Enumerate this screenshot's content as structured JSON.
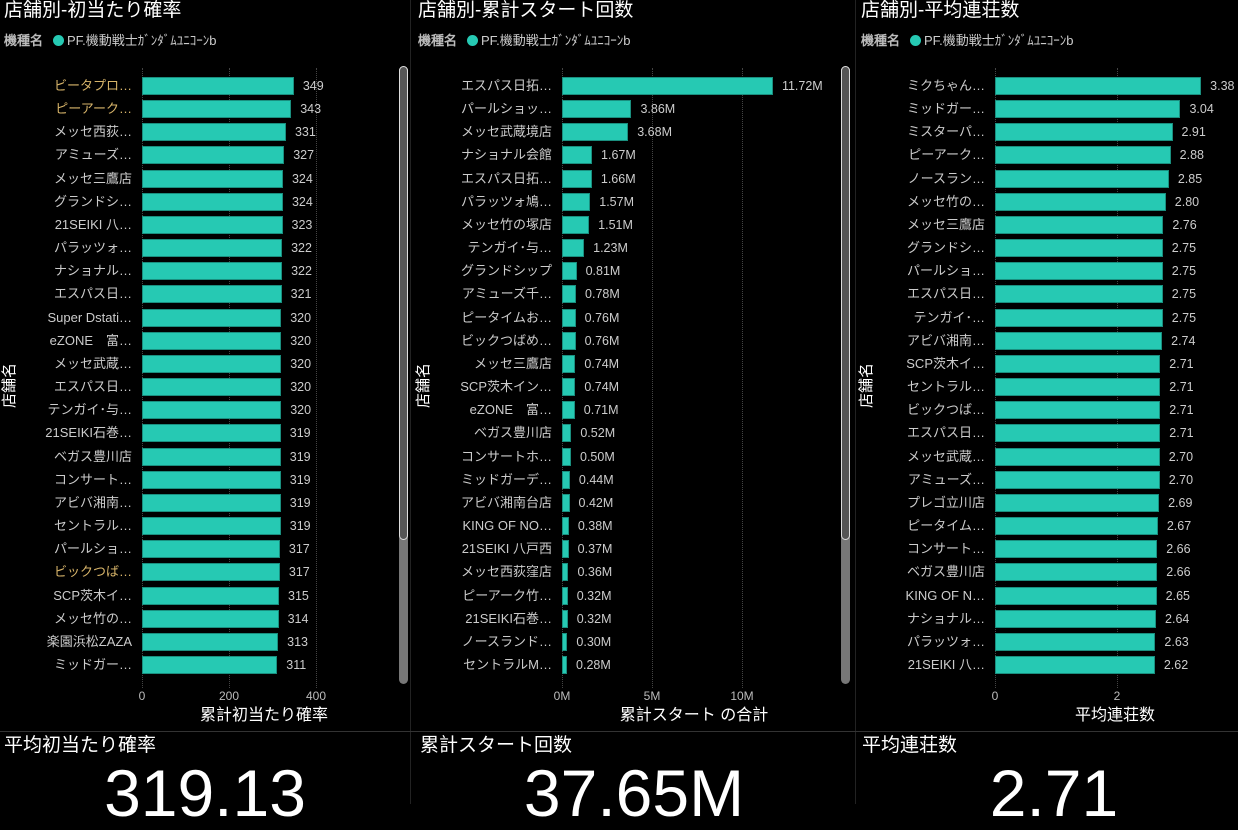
{
  "legend": {
    "label": "機種名",
    "series": "PF.機動戦士ｶﾞﾝﾀﾞﾑﾕﾆｺｰﾝb",
    "color": "#26c9b3"
  },
  "y_axis_title": "店舗名",
  "chart_data": [
    {
      "type": "bar",
      "title": "店舗別-初当たり確率",
      "xlabel": "累計初当たり確率",
      "ylabel": "店舗名",
      "xlim": [
        0,
        400
      ],
      "ticks": [
        "0",
        "200",
        "400"
      ],
      "tick_values": [
        0,
        200,
        400
      ],
      "categories": [
        "ビータプロ…",
        "ピーアーク…",
        "メッセ西荻…",
        "アミューズ…",
        "メッセ三鷹店",
        "グランドシ…",
        "21SEIKI 八…",
        "パラッツォ…",
        "ナショナル…",
        "エスパス日…",
        "Super Dstati…",
        "eZONE　富…",
        "メッセ武蔵…",
        "エスパス日…",
        "テンガイ･与…",
        "21SEIKI石巻…",
        "ベガス豊川店",
        "コンサート…",
        "アビバ湘南…",
        "セントラル…",
        "パールショ…",
        "ビックつば…",
        "SCP茨木イ…",
        "メッセ竹の…",
        "楽園浜松ZAZA",
        "ミッドガー…"
      ],
      "highlighted": [
        0,
        1,
        21
      ],
      "values": [
        349,
        343,
        331,
        327,
        324,
        324,
        323,
        322,
        322,
        321,
        320,
        320,
        320,
        320,
        320,
        319,
        319,
        319,
        319,
        319,
        317,
        317,
        315,
        314,
        313,
        311
      ],
      "labels": [
        "349",
        "343",
        "331",
        "327",
        "324",
        "324",
        "323",
        "322",
        "322",
        "321",
        "320",
        "320",
        "320",
        "320",
        "320",
        "319",
        "319",
        "319",
        "319",
        "319",
        "317",
        "317",
        "315",
        "314",
        "313",
        "311"
      ]
    },
    {
      "type": "bar",
      "title": "店舗別-累計スタート回数",
      "xlabel": "累計スタート の合計",
      "ylabel": "店舗名",
      "xlim": [
        0,
        13
      ],
      "ticks": [
        "0M",
        "5M",
        "10M"
      ],
      "tick_values": [
        0,
        5,
        10
      ],
      "categories": [
        "エスパス日拓…",
        "パールショッ…",
        "メッセ武蔵境店",
        "ナショナル会館",
        "エスパス日拓…",
        "パラッツォ鳩…",
        "メッセ竹の塚店",
        "テンガイ･与…",
        "グランドシップ",
        "アミューズ千…",
        "ピータイムお…",
        "ビックつばめ…",
        "メッセ三鷹店",
        "SCP茨木イン…",
        "eZONE　富…",
        "ベガス豊川店",
        "コンサートホ…",
        "ミッドガーデ…",
        "アビバ湘南台店",
        "KING OF NO…",
        "21SEIKI 八戸西",
        "メッセ西荻窪店",
        "ピーアーク竹…",
        "21SEIKI石巻…",
        "ノースランド…",
        "セントラルM…"
      ],
      "values": [
        11.72,
        3.86,
        3.68,
        1.67,
        1.66,
        1.57,
        1.51,
        1.23,
        0.81,
        0.78,
        0.76,
        0.76,
        0.74,
        0.74,
        0.71,
        0.52,
        0.5,
        0.44,
        0.42,
        0.38,
        0.37,
        0.36,
        0.32,
        0.32,
        0.3,
        0.28
      ],
      "labels": [
        "11.72M",
        "3.86M",
        "3.68M",
        "1.67M",
        "1.66M",
        "1.57M",
        "1.51M",
        "1.23M",
        "0.81M",
        "0.78M",
        "0.76M",
        "0.76M",
        "0.74M",
        "0.74M",
        "0.71M",
        "0.52M",
        "0.50M",
        "0.44M",
        "0.42M",
        "0.38M",
        "0.37M",
        "0.36M",
        "0.32M",
        "0.32M",
        "0.30M",
        "0.28M"
      ]
    },
    {
      "type": "bar",
      "title": "店舗別-平均連荘数",
      "xlabel": "平均連荘数",
      "ylabel": "店舗名",
      "xlim": [
        0,
        3.5
      ],
      "ticks": [
        "0",
        "2"
      ],
      "tick_values": [
        0,
        2
      ],
      "categories": [
        "ミクちゃん…",
        "ミッドガー…",
        "ミスターパ…",
        "ピーアーク…",
        "ノースラン…",
        "メッセ竹の…",
        "メッセ三鷹店",
        "グランドシ…",
        "パールショ…",
        "エスパス日…",
        "テンガイ･…",
        "アビバ湘南…",
        "SCP茨木イ…",
        "セントラル…",
        "ビックつば…",
        "エスパス日…",
        "メッセ武蔵…",
        "アミューズ…",
        "プレゴ立川店",
        "ピータイム…",
        "コンサート…",
        "ベガス豊川店",
        "KING OF N…",
        "ナショナル…",
        "パラッツォ…",
        "21SEIKI 八…"
      ],
      "values": [
        3.38,
        3.04,
        2.91,
        2.88,
        2.85,
        2.8,
        2.76,
        2.75,
        2.75,
        2.75,
        2.75,
        2.74,
        2.71,
        2.71,
        2.71,
        2.71,
        2.7,
        2.7,
        2.69,
        2.67,
        2.66,
        2.66,
        2.65,
        2.64,
        2.63,
        2.62
      ],
      "labels": [
        "3.38",
        "3.04",
        "2.91",
        "2.88",
        "2.85",
        "2.80",
        "2.76",
        "2.75",
        "2.75",
        "2.75",
        "2.75",
        "2.74",
        "2.71",
        "2.71",
        "2.71",
        "2.71",
        "2.70",
        "2.70",
        "2.69",
        "2.67",
        "2.66",
        "2.66",
        "2.65",
        "2.64",
        "2.63",
        "2.62"
      ]
    }
  ],
  "kpis": [
    {
      "label": "平均初当たり確率",
      "value": "319.13"
    },
    {
      "label": "累計スタート回数",
      "value": "37.65M"
    },
    {
      "label": "平均連荘数",
      "value": "2.71"
    }
  ]
}
